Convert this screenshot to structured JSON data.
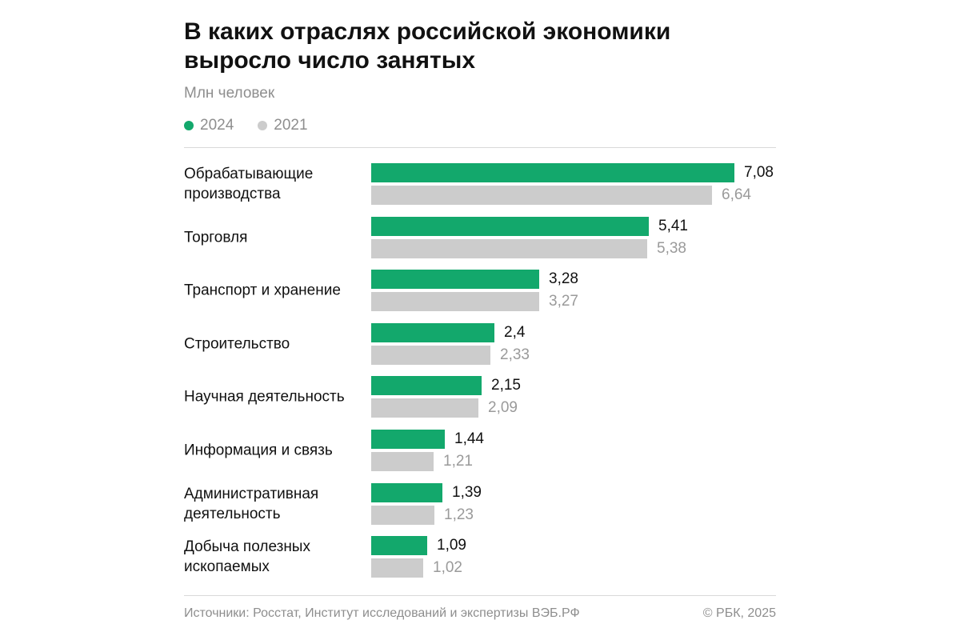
{
  "header": {
    "title": "В каких отраслях российской экономики выросло число занятых",
    "subtitle": "Млн человек"
  },
  "legend": [
    {
      "label": "2024",
      "color": "#13a86c"
    },
    {
      "label": "2021",
      "color": "#cccccc"
    }
  ],
  "colors": {
    "current": "#13a86c",
    "previous": "#cccccc"
  },
  "chart_data": {
    "type": "bar",
    "orientation": "horizontal",
    "title": "В каких отраслях российской экономики выросло число занятых",
    "subtitle": "Млн человек",
    "categories": [
      "Обрабатывающие производства",
      "Торговля",
      "Транспорт и хранение",
      "Строительство",
      "Научная деятельность",
      "Информация и связь",
      "Административная деятельность",
      "Добыча полезных ископаемых"
    ],
    "series": [
      {
        "name": "2024",
        "values": [
          7.08,
          5.41,
          3.28,
          2.4,
          2.15,
          1.44,
          1.39,
          1.09
        ],
        "labels": [
          "7,08",
          "5,41",
          "3,28",
          "2,4",
          "2,15",
          "1,44",
          "1,39",
          "1,09"
        ]
      },
      {
        "name": "2021",
        "values": [
          6.64,
          5.38,
          3.27,
          2.33,
          2.09,
          1.21,
          1.23,
          1.02
        ],
        "labels": [
          "6,64",
          "5,38",
          "3,27",
          "2,33",
          "2,09",
          "1,21",
          "1,23",
          "1,02"
        ]
      }
    ],
    "xlim": [
      0,
      7.08
    ],
    "grid": false,
    "legend_position": "top-left"
  },
  "footer": {
    "source": "Источники: Росстат, Институт исследований и экспертизы ВЭБ.РФ",
    "copyright": "© РБК, 2025"
  }
}
